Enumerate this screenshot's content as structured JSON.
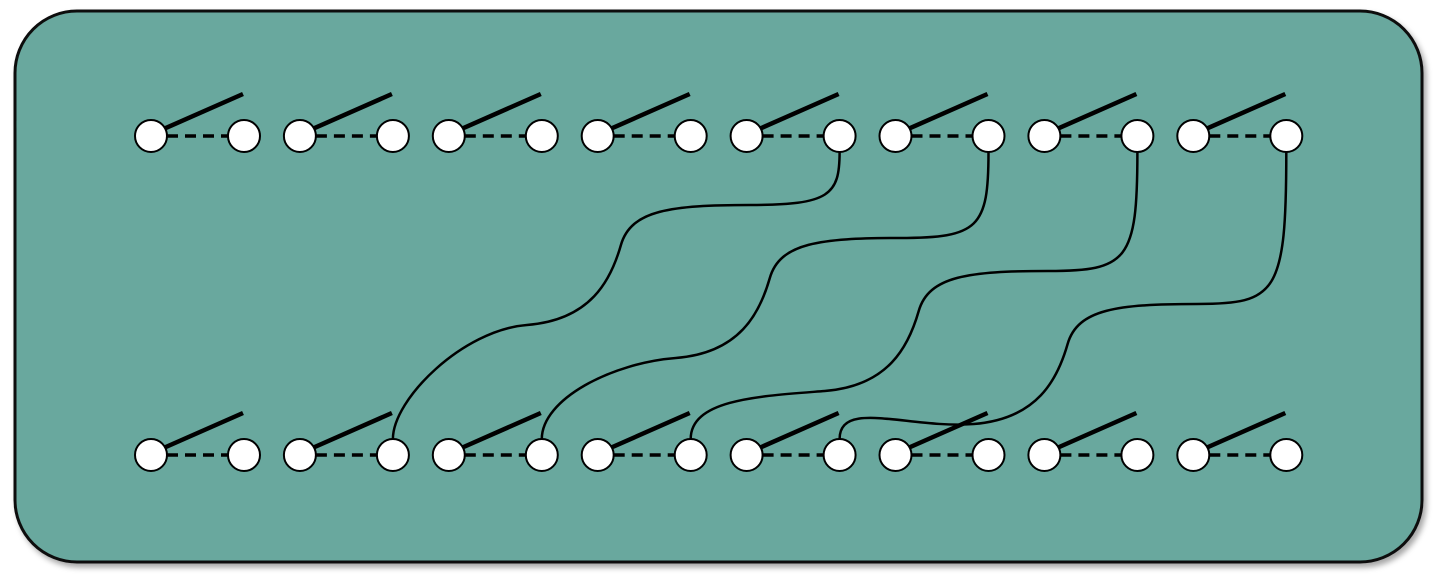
{
  "diagram": {
    "panel_color": "#69a89e",
    "panel_border_color": "#111111",
    "node_fill": "#ffffff",
    "stroke_color": "#000000",
    "rows": [
      {
        "name": "top-row",
        "switch_count": 8,
        "state": "open"
      },
      {
        "name": "bottom-row",
        "switch_count": 8,
        "state": "open"
      }
    ],
    "connections": [
      {
        "from": {
          "row": 0,
          "switch": 4,
          "terminal": "right"
        },
        "to": {
          "row": 1,
          "switch": 1,
          "terminal": "right"
        }
      },
      {
        "from": {
          "row": 0,
          "switch": 5,
          "terminal": "right"
        },
        "to": {
          "row": 1,
          "switch": 2,
          "terminal": "right"
        }
      },
      {
        "from": {
          "row": 0,
          "switch": 6,
          "terminal": "right"
        },
        "to": {
          "row": 1,
          "switch": 3,
          "terminal": "right"
        }
      },
      {
        "from": {
          "row": 0,
          "switch": 7,
          "terminal": "right"
        },
        "to": {
          "row": 1,
          "switch": 4,
          "terminal": "right"
        }
      }
    ]
  }
}
